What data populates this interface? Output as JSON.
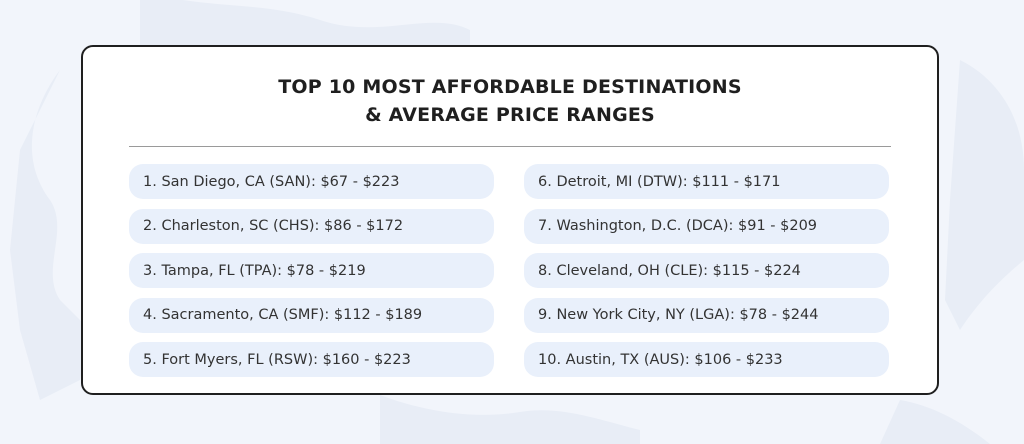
{
  "colors": {
    "page_background": "#f2f5fb",
    "card_background": "#ffffff",
    "card_border": "#1f1f1f",
    "item_background": "#e9f0fb",
    "title_text": "#1f1f1f",
    "item_text": "#333333",
    "divider": "#9a9a9a"
  },
  "title": {
    "line1": "TOP 10 MOST AFFORDABLE DESTINATIONS",
    "line2": "& AVERAGE PRICE RANGES"
  },
  "destinations_left": [
    "1. San Diego, CA (SAN): $67 - $223",
    "2. Charleston, SC (CHS): $86 - $172",
    "3. Tampa, FL (TPA): $78 - $219",
    "4. Sacramento, CA (SMF): $112 - $189",
    "5. Fort Myers, FL (RSW): $160 - $223"
  ],
  "destinations_right": [
    "6. Detroit, MI (DTW): $111 - $171",
    "7. Washington, D.C. (DCA): $91 - $209",
    "8. Cleveland, OH (CLE): $115 - $224",
    "9. New York City, NY (LGA): $78 - $244",
    "10. Austin, TX (AUS): $106 - $233"
  ]
}
